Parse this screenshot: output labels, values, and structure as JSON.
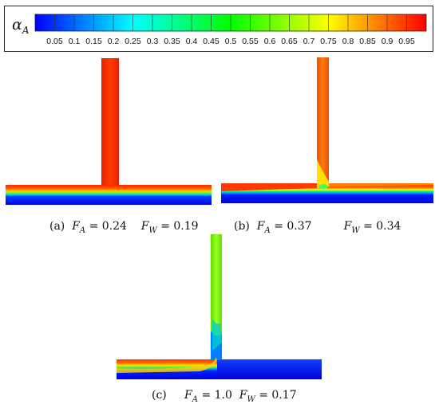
{
  "legend": {
    "symbol": "α",
    "symbol_sub": "A",
    "ticks": [
      "0.05",
      "0.1",
      "0.15",
      "0.2",
      "0.25",
      "0.3",
      "0.35",
      "0.4",
      "0.45",
      "0.5",
      "0.55",
      "0.6",
      "0.65",
      "0.7",
      "0.75",
      "0.8",
      "0.85",
      "0.9",
      "0.95"
    ],
    "colormap": [
      "#0000ff",
      "#0080ff",
      "#00ffff",
      "#00ff80",
      "#00ff00",
      "#80ff00",
      "#ffff00",
      "#ff8000",
      "#ff0000"
    ]
  },
  "panels": [
    {
      "id": "a",
      "label": "(a)",
      "fa_value": "0.24",
      "fw_value": "0.19",
      "fa_eq": "= 0.24",
      "fw_eq": "= 0.19"
    },
    {
      "id": "b",
      "label": "(b)",
      "fa_value": "0.37",
      "fw_value": "0.34",
      "fa_eq": "= 0.37",
      "fw_eq": "= 0.34"
    },
    {
      "id": "c",
      "label": "(c)",
      "fa_value": "1.0",
      "fw_value": "0.17",
      "fa_eq": "= 1.0",
      "fw_eq": "= 0.17"
    }
  ],
  "symbols": {
    "F": "F",
    "A": "A",
    "W": "W"
  }
}
